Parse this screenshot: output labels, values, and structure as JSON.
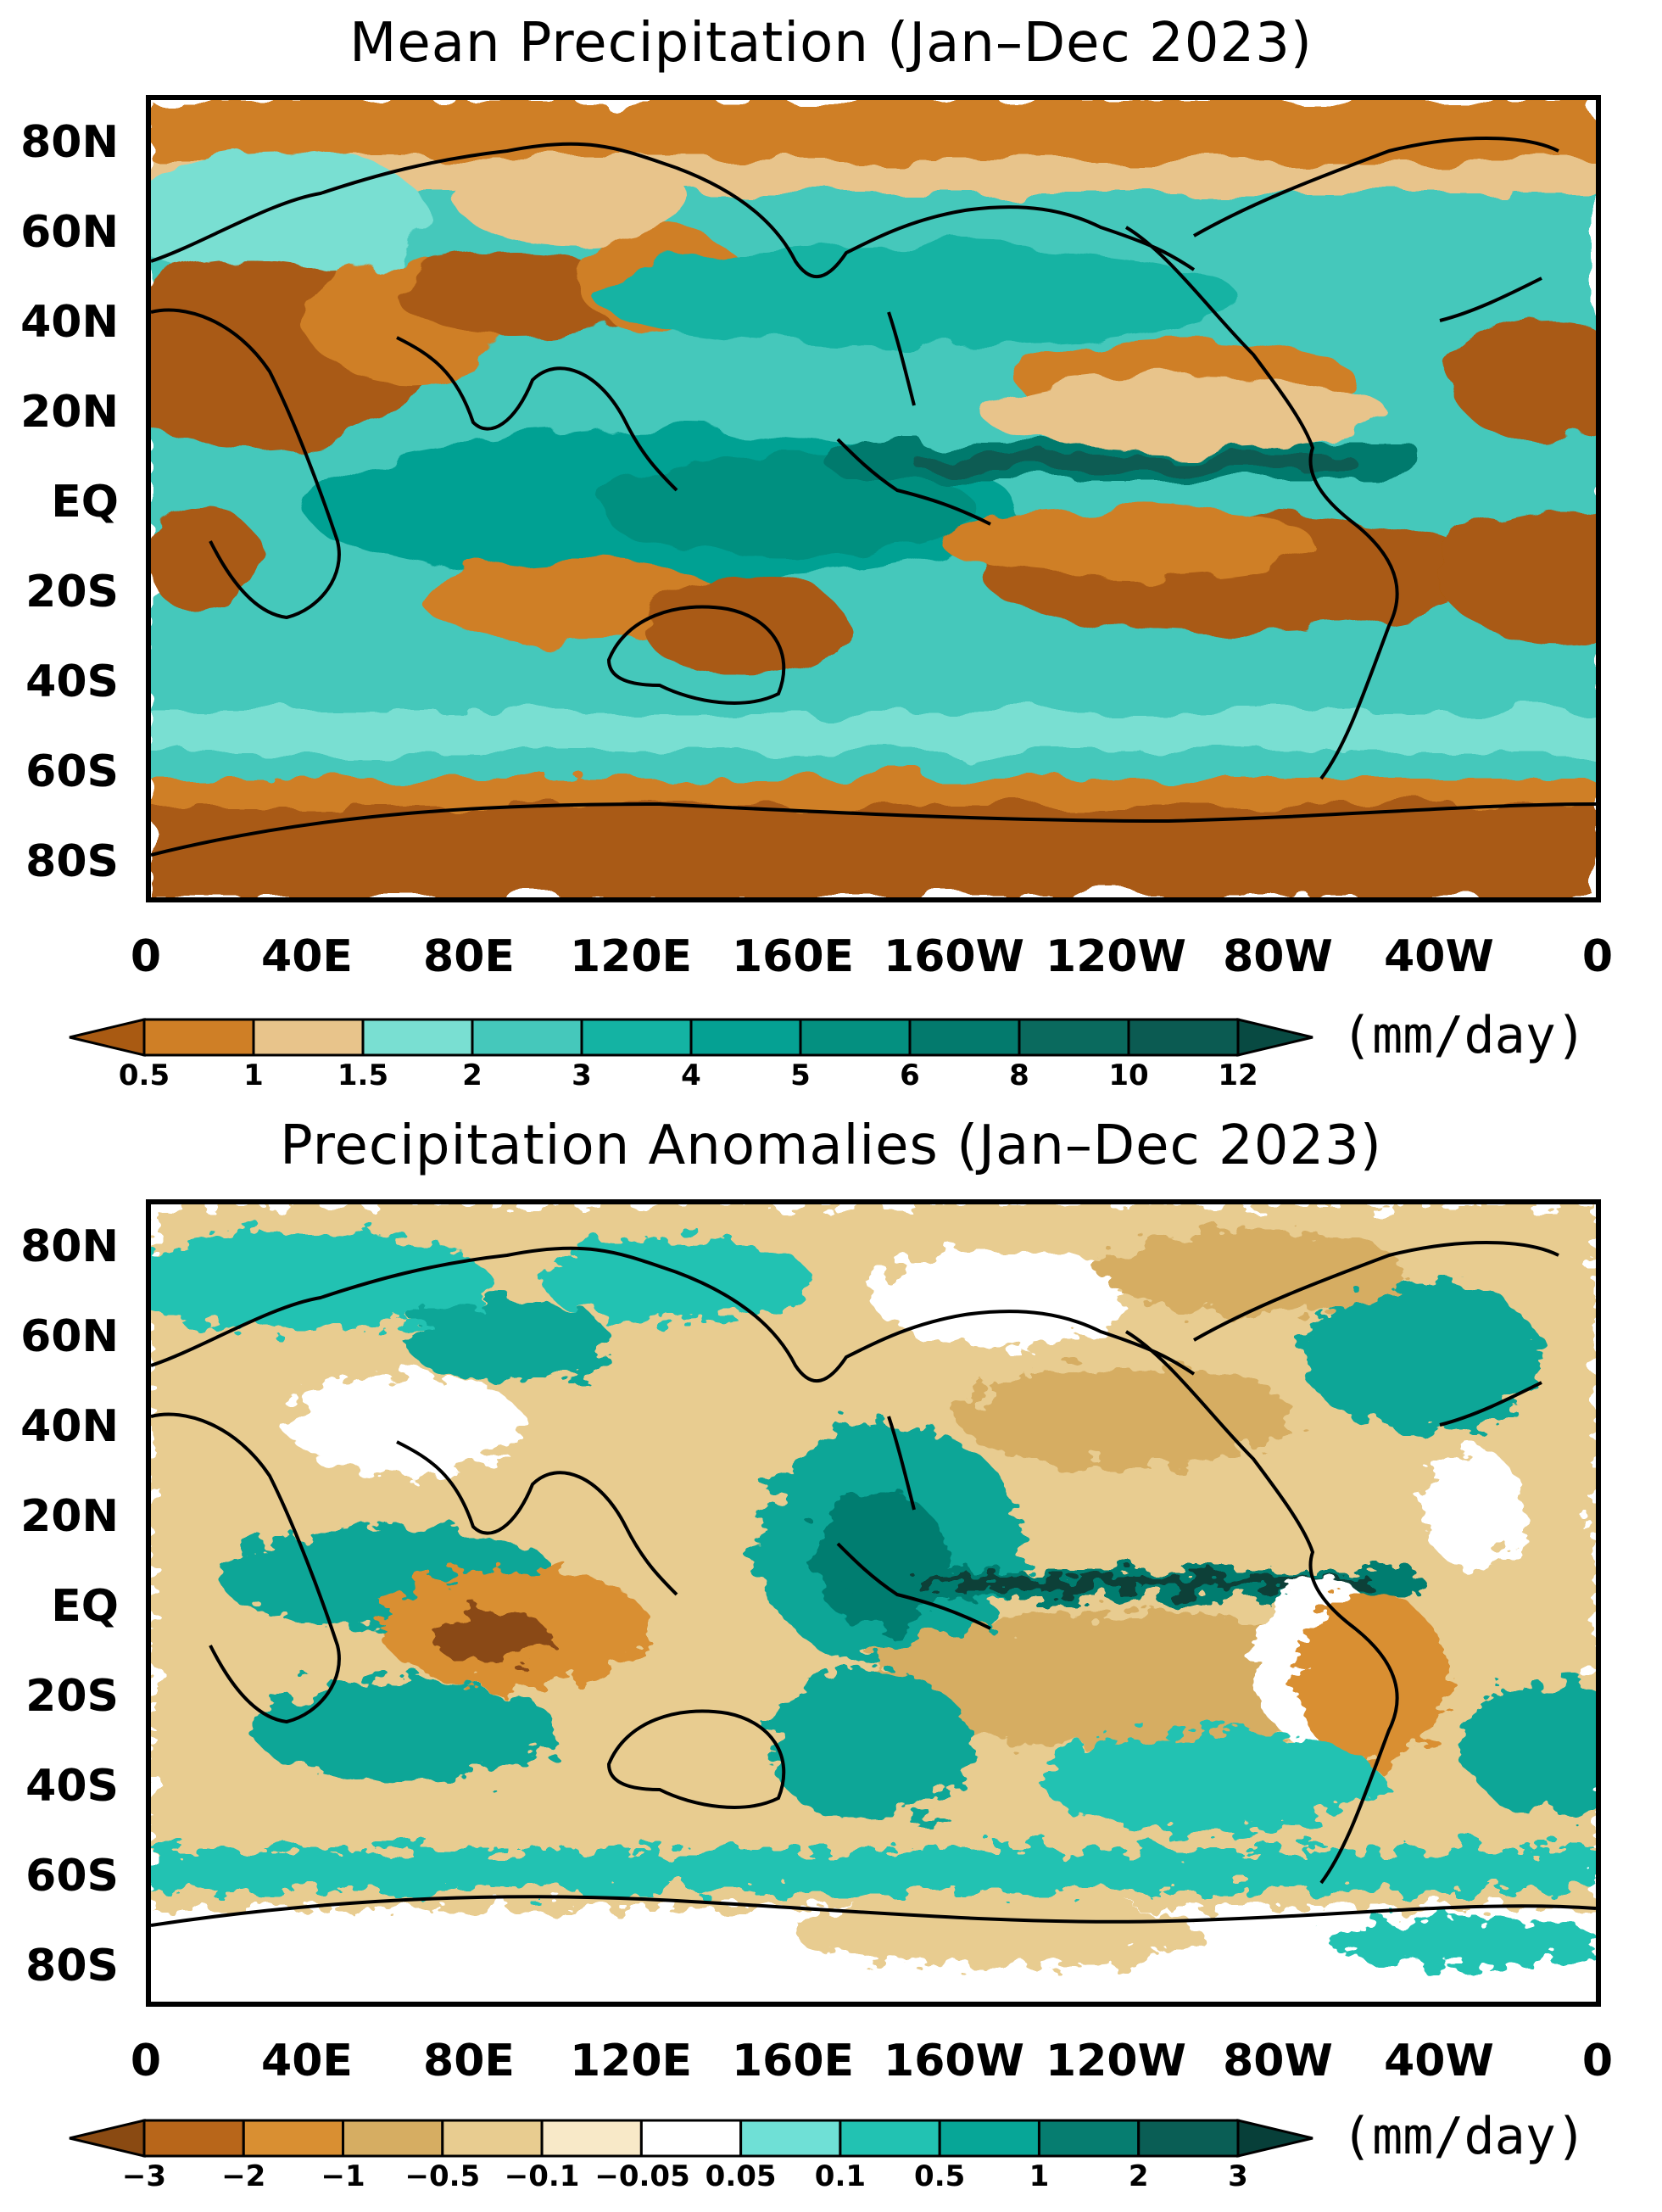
{
  "panels": [
    {
      "title": "Mean Precipitation (Jan–Dec 2023)",
      "unit": "(mm/day)",
      "lat_labels": [
        "80N",
        "60N",
        "40N",
        "20N",
        "EQ",
        "20S",
        "40S",
        "60S",
        "80S"
      ],
      "lon_labels": [
        "0",
        "40E",
        "80E",
        "120E",
        "160E",
        "160W",
        "120W",
        "80W",
        "40W",
        "0"
      ],
      "colorbar": {
        "labels": [
          "0.5",
          "1",
          "1.5",
          "2",
          "3",
          "4",
          "5",
          "6",
          "8",
          "10",
          "12"
        ],
        "colors": [
          "#a95a12",
          "#cf7f26",
          "#e8c48b",
          "#79dfd2",
          "#45c8bb",
          "#14b3a3",
          "#05a193",
          "#049080",
          "#037a6d",
          "#0a6a5e",
          "#0b5b52",
          "#084a42"
        ]
      }
    },
    {
      "title": "Precipitation Anomalies (Jan–Dec 2023)",
      "unit": "(mm/day)",
      "lat_labels": [
        "80N",
        "60N",
        "40N",
        "20N",
        "EQ",
        "20S",
        "40S",
        "60S",
        "80S"
      ],
      "lon_labels": [
        "0",
        "40E",
        "80E",
        "120E",
        "160E",
        "160W",
        "120W",
        "80W",
        "40W",
        "0"
      ],
      "colorbar": {
        "labels": [
          "−3",
          "−2",
          "−1",
          "−0.5",
          "−0.1",
          "−0.05",
          "0.05",
          "0.1",
          "0.5",
          "1",
          "2",
          "3"
        ],
        "colors": [
          "#8a4a12",
          "#b8661a",
          "#d98f32",
          "#d6ad62",
          "#e8cc90",
          "#f8e9c8",
          "#ffffff",
          "#6fe0d6",
          "#22c2b2",
          "#07a697",
          "#067d70",
          "#0a5e55",
          "#073f39"
        ]
      }
    }
  ]
}
